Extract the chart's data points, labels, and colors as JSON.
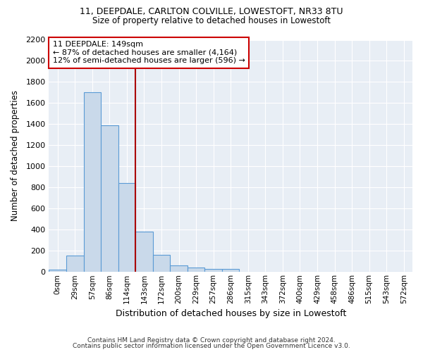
{
  "title_line1": "11, DEEPDALE, CARLTON COLVILLE, LOWESTOFT, NR33 8TU",
  "title_line2": "Size of property relative to detached houses in Lowestoft",
  "xlabel": "Distribution of detached houses by size in Lowestoft",
  "ylabel": "Number of detached properties",
  "bar_color": "#c9d9ea",
  "bar_edge_color": "#5b9bd5",
  "categories": [
    "0sqm",
    "29sqm",
    "57sqm",
    "86sqm",
    "114sqm",
    "143sqm",
    "172sqm",
    "200sqm",
    "229sqm",
    "257sqm",
    "286sqm",
    "315sqm",
    "343sqm",
    "372sqm",
    "400sqm",
    "429sqm",
    "458sqm",
    "486sqm",
    "515sqm",
    "543sqm",
    "572sqm"
  ],
  "values": [
    20,
    155,
    1700,
    1390,
    840,
    385,
    165,
    65,
    40,
    28,
    28,
    0,
    0,
    0,
    0,
    0,
    0,
    0,
    0,
    0,
    0
  ],
  "ylim": [
    0,
    2200
  ],
  "yticks": [
    0,
    200,
    400,
    600,
    800,
    1000,
    1200,
    1400,
    1600,
    1800,
    2000,
    2200
  ],
  "annotation_text_line1": "11 DEEPDALE: 149sqm",
  "annotation_text_line2": "← 87% of detached houses are smaller (4,164)",
  "annotation_text_line3": "12% of semi-detached houses are larger (596) →",
  "vline_color": "#aa0000",
  "annotation_box_color": "#ffffff",
  "annotation_box_edge": "#cc0000",
  "bg_color": "#e8eef5",
  "footer_line1": "Contains HM Land Registry data © Crown copyright and database right 2024.",
  "footer_line2": "Contains public sector information licensed under the Open Government Licence v3.0."
}
